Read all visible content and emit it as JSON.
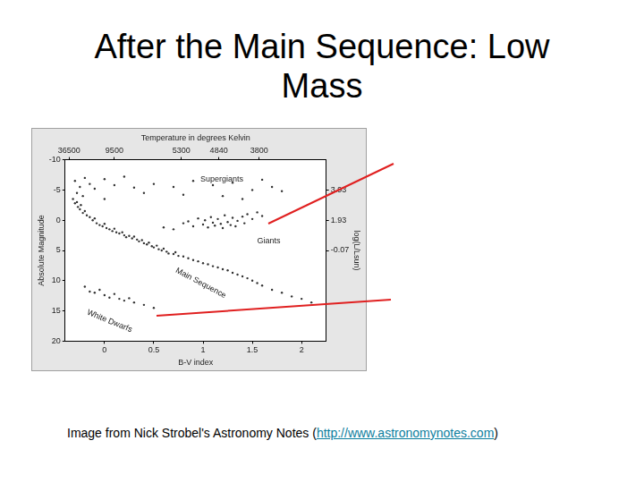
{
  "title": "After the Main Sequence: Low Mass",
  "caption": {
    "text": "Image from Nick Strobel's Astronomy Notes (",
    "link": "http://www.astronomynotes.com",
    "after": ")"
  },
  "chart_data": {
    "type": "scatter",
    "x_label": "B-V index",
    "y_label": "Absolute Magnitude",
    "x2_label": "Temperature in degrees Kelvin",
    "y2_label": "log(L/Lsun)",
    "color": "#333333",
    "marker": "circle",
    "grid": false,
    "x": [
      -0.32,
      -0.3,
      -0.28,
      -0.27,
      -0.25,
      -0.24,
      -0.22,
      -0.2,
      -0.18,
      -0.15,
      -0.12,
      -0.1,
      -0.08,
      -0.05,
      -0.02,
      0.0,
      0.02,
      0.05,
      0.08,
      0.1,
      0.12,
      0.15,
      0.18,
      0.2,
      0.22,
      0.25,
      0.28,
      0.3,
      0.33,
      0.35,
      0.38,
      0.4,
      0.43,
      0.45,
      0.48,
      0.5,
      0.53,
      0.55,
      0.58,
      0.6,
      0.63,
      0.65,
      0.7,
      0.72,
      0.75,
      0.8,
      0.85,
      0.9,
      0.95,
      1.0,
      1.05,
      1.1,
      1.15,
      1.2,
      1.25,
      1.3,
      1.35,
      1.4,
      1.45,
      1.5,
      1.55,
      1.6,
      1.7,
      1.8,
      1.9,
      2.0,
      2.1,
      0.8,
      0.85,
      0.9,
      0.95,
      1.0,
      1.02,
      1.05,
      1.08,
      1.1,
      1.12,
      1.15,
      1.18,
      1.2,
      1.22,
      1.25,
      1.28,
      1.3,
      1.33,
      1.35,
      1.4,
      1.42,
      1.45,
      1.5,
      1.55,
      1.6,
      0.7,
      0.6,
      -0.3,
      -0.25,
      -0.2,
      -0.15,
      -0.1,
      0.0,
      0.1,
      0.2,
      0.3,
      0.5,
      0.7,
      0.9,
      1.1,
      1.3,
      1.5,
      1.6,
      1.7,
      1.8,
      0.4,
      0.8,
      1.2,
      1.4,
      -0.28,
      -0.22,
      0.0,
      -0.2,
      -0.15,
      -0.1,
      -0.05,
      0.0,
      0.05,
      0.1,
      0.15,
      0.2,
      0.25,
      0.3,
      0.4,
      0.5
    ],
    "values": [
      -3.5,
      -2.8,
      -3.0,
      -2.2,
      -1.8,
      -2.5,
      -1.2,
      -1.5,
      -0.8,
      -0.5,
      0.0,
      -0.3,
      0.5,
      0.8,
      1.0,
      0.6,
      1.3,
      1.5,
      1.8,
      1.4,
      2.0,
      2.2,
      2.0,
      2.5,
      2.8,
      2.6,
      3.0,
      2.7,
      3.2,
      3.5,
      3.3,
      3.8,
      4.0,
      3.7,
      4.3,
      4.5,
      4.2,
      4.8,
      5.0,
      4.7,
      5.2,
      5.5,
      5.6,
      5.3,
      5.9,
      6.0,
      6.3,
      6.6,
      6.8,
      7.1,
      7.3,
      7.6,
      7.8,
      8.1,
      8.3,
      8.7,
      9.0,
      9.3,
      9.6,
      10.0,
      10.4,
      10.8,
      11.5,
      12.0,
      12.6,
      13.0,
      13.6,
      0.5,
      0.2,
      1.0,
      -0.3,
      0.7,
      0.0,
      1.2,
      -0.5,
      0.4,
      0.9,
      -0.2,
      0.6,
      1.3,
      -0.8,
      0.3,
      0.8,
      -0.4,
      1.0,
      0.1,
      -0.6,
      0.5,
      -1.0,
      -0.2,
      -1.3,
      -0.7,
      1.5,
      1.2,
      -6.5,
      -5.5,
      -7.0,
      -6.0,
      -5.2,
      -6.8,
      -5.8,
      -7.2,
      -5.4,
      -6.0,
      -5.5,
      -6.5,
      -5.8,
      -6.2,
      -5.0,
      -6.7,
      -5.5,
      -4.8,
      -4.5,
      -4.2,
      -4.0,
      -3.5,
      -4.5,
      -4.0,
      -3.5,
      11.0,
      11.8,
      12.0,
      11.5,
      12.4,
      12.8,
      12.2,
      13.0,
      13.3,
      12.9,
      13.6,
      14.0,
      14.5
    ],
    "xlim": [
      -0.4,
      2.25
    ],
    "xticks": [
      0,
      0.5,
      1,
      1.5,
      2
    ],
    "ylim": [
      20,
      -10
    ],
    "yticks": [
      -10,
      -5,
      0,
      5,
      10,
      15,
      20
    ],
    "x2ticks": [
      {
        "value": -0.36,
        "label": "36500"
      },
      {
        "value": 0.1,
        "label": "9500"
      },
      {
        "value": 0.78,
        "label": "5300"
      },
      {
        "value": 1.16,
        "label": "4840"
      },
      {
        "value": 1.57,
        "label": "3800"
      }
    ],
    "y2lim": [
      -6.068,
      5.932
    ],
    "y2ticks": [
      {
        "value": 3.932,
        "label": "3.93"
      },
      {
        "value": 1.932,
        "label": "1.93"
      },
      {
        "value": -0.068,
        "label": "-0.07"
      }
    ],
    "annotations": [
      "Supergiants",
      "Giants",
      "Main Sequence",
      "White Dwarfs"
    ]
  }
}
